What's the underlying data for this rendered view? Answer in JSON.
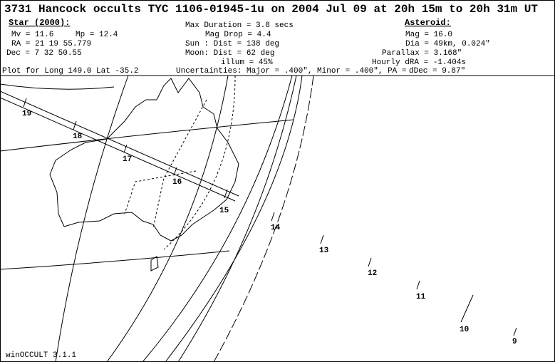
{
  "header": {
    "title": "3731 Hancock occults TYC 1106-01945-1u on 2004 Jul 09 at 20h 15m to 20h 31m UT",
    "star": {
      "heading": "Star (2000):",
      "mv": "Mv = 11.6",
      "mp": "Mp = 12.4",
      "ra": "RA =  21 19 55.779",
      "dec": "Dec =   7 32 50.55"
    },
    "event": {
      "max_duration": "Max Duration = 3.8 secs",
      "mag_drop": "Mag Drop =  4.4",
      "sun": "Sun :  Dist = 138 deg",
      "moon": "Moon:  Dist = 62 deg",
      "illum": "illum = 45%"
    },
    "asteroid": {
      "heading": "Asteroid:",
      "mag": "Mag = 16.0",
      "dia": "Dia = 49km, 0.024\"",
      "parallax": "Parallax = 3.168\"",
      "hourly_dra": "Hourly dRA = -1.404s",
      "hourly_ddec": "dDec = 9.87\""
    },
    "plot_for": "Plot for Long 149.0  Lat -35.2",
    "uncertainties": "Uncertainties: Major = .400\", Minor = .400\", PA ="
  },
  "map": {
    "time_labels": [
      "19",
      "18",
      "17",
      "16",
      "15",
      "14",
      "13",
      "12",
      "11",
      "10",
      "9"
    ]
  },
  "footer": {
    "software": "winOCCULT 3.1.1"
  }
}
